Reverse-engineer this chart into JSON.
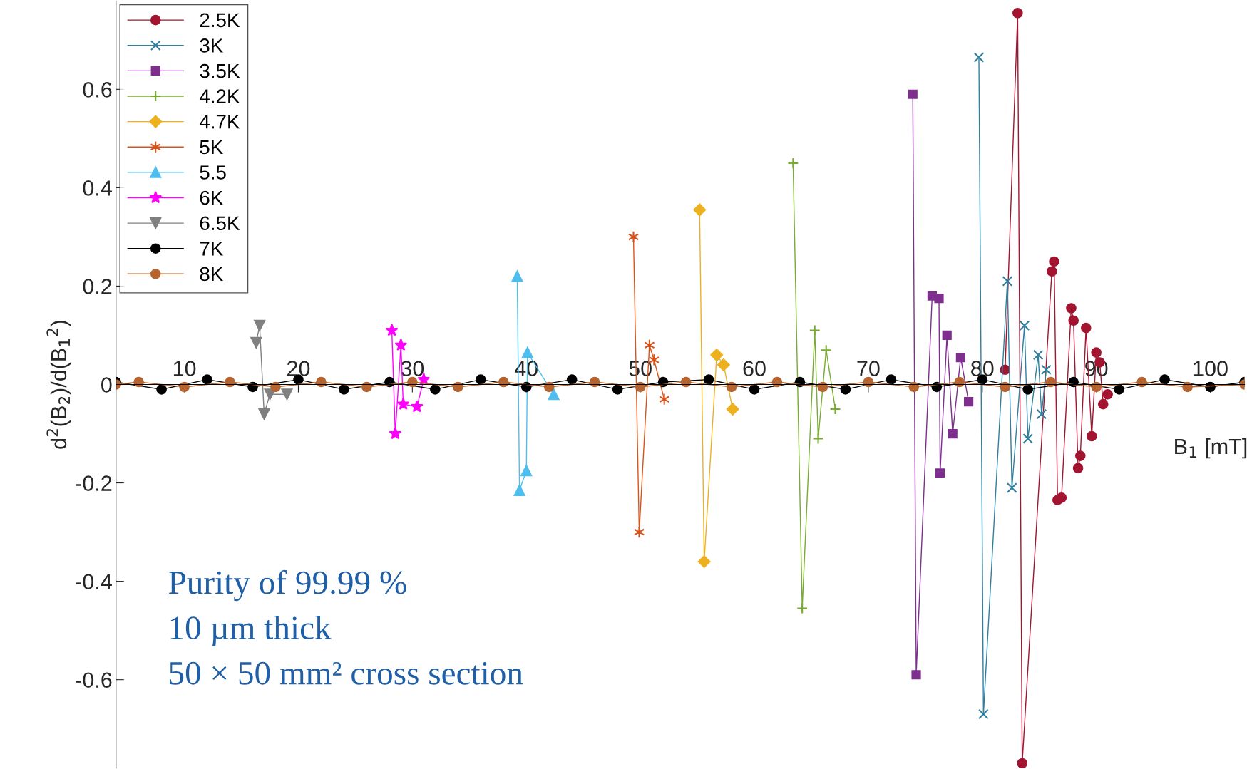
{
  "chart_data": {
    "type": "line",
    "xlabel": "B$_{1}$ [mT]",
    "ylabel": "d$^{2}$(B$_{2}$)/d(B$_{1}$$^{2}$)",
    "xlim": [
      4,
      103
    ],
    "xticks": [
      10,
      20,
      30,
      40,
      50,
      60,
      70,
      80,
      90,
      100
    ],
    "ylim": [
      -0.78,
      0.78
    ],
    "yticks": [
      -0.6,
      -0.4,
      -0.2,
      0,
      0.2,
      0.4,
      0.6
    ],
    "grid": false,
    "legend": "top left",
    "annotations": [
      "Purity of 99.99 %",
      "10 µm thick",
      "50 × 50 mm² cross section"
    ],
    "series": [
      {
        "name": "2.5K",
        "color": "#a2142f",
        "marker": "circle",
        "x": [
          82,
          83.1,
          83.5,
          86.1,
          86.3,
          86.6,
          86.95,
          87.8,
          88.0,
          88.4,
          88.6,
          89.1,
          89.6,
          90.0,
          90.3,
          90.6,
          91
        ],
        "values": [
          0.03,
          0.755,
          -0.77,
          0.23,
          0.25,
          -0.235,
          -0.23,
          0.155,
          0.13,
          -0.17,
          -0.145,
          0.115,
          -0.105,
          0.065,
          0.045,
          -0.04,
          -0.02
        ]
      },
      {
        "name": "3K",
        "color": "#2f7f9f",
        "marker": "x",
        "x": [
          79.7,
          80.1,
          82.2,
          82.6,
          83.7,
          84.0,
          84.9,
          85.2,
          85.6
        ],
        "values": [
          0.665,
          -0.67,
          0.21,
          -0.21,
          0.12,
          -0.11,
          0.06,
          -0.06,
          0.03
        ]
      },
      {
        "name": "3.5K",
        "color": "#7e2f8e",
        "marker": "square",
        "x": [
          73.9,
          74.2,
          75.6,
          76.2,
          76.3,
          76.9,
          77.4,
          78.1,
          78.8
        ],
        "values": [
          0.59,
          -0.59,
          0.18,
          0.175,
          -0.18,
          0.1,
          -0.1,
          0.055,
          -0.035
        ]
      },
      {
        "name": "4.2K",
        "color": "#77ac30",
        "marker": "plus",
        "x": [
          63.4,
          64.2,
          65.3,
          65.6,
          66.3,
          67.1
        ],
        "values": [
          0.45,
          -0.455,
          0.11,
          -0.11,
          0.07,
          -0.05
        ]
      },
      {
        "name": "4.7K",
        "color": "#edb120",
        "marker": "diamond",
        "x": [
          55.2,
          55.6,
          56.7,
          57.3,
          58.1
        ],
        "values": [
          0.355,
          -0.36,
          0.06,
          0.04,
          -0.05
        ]
      },
      {
        "name": "5K",
        "color": "#d95319",
        "marker": "cross",
        "x": [
          49.4,
          49.9,
          50.8,
          51.2,
          52.1
        ],
        "values": [
          0.3,
          -0.3,
          0.08,
          0.05,
          -0.03
        ]
      },
      {
        "name": "5.5",
        "color": "#4dbeee",
        "marker": "triangle",
        "x": [
          39.2,
          39.4,
          40.0,
          40.1,
          42.4
        ],
        "values": [
          0.22,
          -0.215,
          -0.175,
          0.065,
          -0.02
        ]
      },
      {
        "name": "6K",
        "color": "#ff00ff",
        "marker": "star",
        "x": [
          28.2,
          28.5,
          29.0,
          29.2,
          30.4,
          31
        ],
        "values": [
          0.11,
          -0.1,
          0.08,
          -0.04,
          -0.045,
          0.01
        ]
      },
      {
        "name": "6.5K",
        "color": "#808080",
        "marker": "triangle_down",
        "x": [
          16.3,
          16.6,
          17.0,
          17.5,
          19.0
        ],
        "values": [
          0.085,
          0.12,
          -0.06,
          -0.02,
          -0.02
        ]
      },
      {
        "name": "7K",
        "color": "#000000",
        "marker": "circle",
        "x": [
          4,
          8,
          12,
          16,
          20,
          24,
          28,
          32,
          36,
          40,
          44,
          48,
          52,
          56,
          60,
          64,
          68,
          72,
          76,
          80,
          84,
          88,
          92,
          96,
          100,
          103
        ],
        "values": [
          0.005,
          -0.01,
          0.01,
          -0.005,
          0.01,
          -0.01,
          0.005,
          -0.01,
          0.01,
          -0.005,
          0.01,
          -0.01,
          0.005,
          0.01,
          -0.01,
          0.005,
          -0.01,
          0.01,
          -0.005,
          0.01,
          -0.01,
          0.005,
          -0.01,
          0.01,
          -0.005,
          0.005
        ]
      },
      {
        "name": "8K",
        "color": "#b5642f",
        "marker": "circle",
        "x": [
          4,
          6,
          10,
          14,
          18,
          22,
          26,
          30,
          34,
          38,
          42,
          46,
          50,
          54,
          58,
          62,
          66,
          70,
          74,
          78,
          82,
          86,
          90,
          94,
          98,
          103
        ],
        "values": [
          0,
          0.005,
          -0.005,
          0.005,
          -0.005,
          0.005,
          -0.005,
          0.005,
          -0.005,
          0.005,
          -0.005,
          0.005,
          -0.005,
          0.005,
          -0.005,
          0.005,
          -0.005,
          0.005,
          -0.005,
          0.005,
          -0.005,
          0.005,
          -0.005,
          0.005,
          -0.005,
          0
        ]
      }
    ]
  }
}
